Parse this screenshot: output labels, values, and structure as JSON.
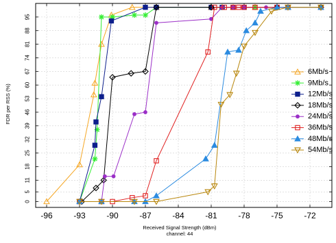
{
  "chart_data": {
    "type": "line",
    "xlabel": "Received Signal Strength (dBm)",
    "subtitle": "channel: 44",
    "ylabel": "FDR per RSS (%)",
    "xlim": [
      -97,
      -70
    ],
    "ylim": [
      -3,
      102
    ],
    "xticks": [
      -96,
      -93,
      -90,
      -87,
      -84,
      -81,
      -78,
      -75,
      -72
    ],
    "yticks": [
      0,
      5,
      11,
      18,
      25,
      32,
      39,
      46,
      53,
      60,
      67,
      74,
      81,
      88,
      95
    ],
    "grid": true,
    "legend_position": "right",
    "series": [
      {
        "name": "6Mb/s",
        "color": "#f5a623",
        "marker": "triangle-up",
        "points": [
          [
            -96,
            0
          ],
          [
            -93,
            19
          ],
          [
            -91.7,
            55
          ],
          [
            -91.6,
            61
          ],
          [
            -91,
            81
          ],
          [
            -90.1,
            96
          ],
          [
            -88.2,
            100
          ],
          [
            -86,
            100
          ],
          [
            -81,
            100
          ],
          [
            -80,
            100
          ],
          [
            -79,
            100
          ],
          [
            -77,
            100
          ],
          [
            -74,
            100
          ]
        ]
      },
      {
        "name": "9Mb/s",
        "color": "#33ee33",
        "marker": "star",
        "points": [
          [
            -93,
            0
          ],
          [
            -91.6,
            22
          ],
          [
            -91.4,
            37
          ],
          [
            -91,
            95
          ],
          [
            -90,
            95
          ],
          [
            -88,
            96
          ],
          [
            -87,
            96
          ],
          [
            -86,
            100
          ],
          [
            -81,
            100
          ],
          [
            -80,
            100
          ],
          [
            -77,
            100
          ]
        ]
      },
      {
        "name": "12Mb/s",
        "color": "#0d1f8c",
        "marker": "square",
        "points": [
          [
            -93,
            0
          ],
          [
            -91.6,
            29
          ],
          [
            -91.5,
            41
          ],
          [
            -91,
            54
          ],
          [
            -90.1,
            93
          ],
          [
            -87,
            100
          ],
          [
            -86,
            100
          ],
          [
            -81,
            100
          ],
          [
            -80,
            100
          ],
          [
            -79,
            100
          ],
          [
            -78,
            100
          ],
          [
            -75,
            100
          ],
          [
            -74,
            100
          ]
        ]
      },
      {
        "name": "18Mb/s",
        "color": "#000000",
        "marker": "diamond-open",
        "points": [
          [
            -92.8,
            0
          ],
          [
            -91.5,
            7
          ],
          [
            -90.8,
            11
          ],
          [
            -90,
            64
          ],
          [
            -88.3,
            66
          ],
          [
            -87,
            67
          ],
          [
            -86,
            100
          ],
          [
            -81,
            100
          ],
          [
            -75,
            100
          ],
          [
            -71,
            100
          ]
        ]
      },
      {
        "name": "24Mb/s",
        "color": "#9b2fc7",
        "marker": "circle",
        "points": [
          [
            -93,
            0
          ],
          [
            -91,
            0
          ],
          [
            -90.7,
            13
          ],
          [
            -89.9,
            13
          ],
          [
            -88,
            45
          ],
          [
            -87,
            46
          ],
          [
            -86,
            92
          ],
          [
            -81,
            94
          ],
          [
            -80,
            100
          ],
          [
            -79,
            100
          ],
          [
            -78,
            100
          ],
          [
            -76,
            100
          ],
          [
            -74,
            100
          ]
        ]
      },
      {
        "name": "36Mb/s",
        "color": "#e02020",
        "marker": "square-open",
        "points": [
          [
            -93,
            0
          ],
          [
            -91,
            0
          ],
          [
            -90,
            0
          ],
          [
            -88.2,
            2
          ],
          [
            -87,
            3
          ],
          [
            -86,
            21
          ],
          [
            -81.3,
            77
          ],
          [
            -80.7,
            100
          ],
          [
            -79.8,
            100
          ],
          [
            -79,
            100
          ],
          [
            -78.5,
            100
          ],
          [
            -78,
            100
          ],
          [
            -77,
            100
          ],
          [
            -75,
            100
          ],
          [
            -74,
            100
          ],
          [
            -71,
            100
          ]
        ]
      },
      {
        "name": "48Mb/s",
        "color": "#2b8be0",
        "marker": "triangle-up",
        "points": [
          [
            -93,
            0
          ],
          [
            -91,
            0
          ],
          [
            -88,
            0
          ],
          [
            -87,
            0
          ],
          [
            -86,
            3
          ],
          [
            -81.5,
            22
          ],
          [
            -80.7,
            29
          ],
          [
            -79.5,
            77
          ],
          [
            -78.5,
            78
          ],
          [
            -77.8,
            88
          ],
          [
            -77,
            92
          ],
          [
            -76.5,
            98
          ],
          [
            -75,
            100
          ],
          [
            -74,
            100
          ],
          [
            -71,
            100
          ]
        ]
      },
      {
        "name": "54Mb/s",
        "color": "#b8860b",
        "marker": "triangle-down",
        "points": [
          [
            -93,
            0
          ],
          [
            -91,
            0
          ],
          [
            -88,
            0
          ],
          [
            -86,
            0
          ],
          [
            -81.3,
            5
          ],
          [
            -80.7,
            8
          ],
          [
            -80.1,
            50
          ],
          [
            -79.3,
            55
          ],
          [
            -78.7,
            66
          ],
          [
            -78,
            80
          ],
          [
            -77,
            87
          ],
          [
            -75.5,
            98
          ],
          [
            -74,
            100
          ],
          [
            -71,
            100
          ]
        ]
      }
    ]
  }
}
